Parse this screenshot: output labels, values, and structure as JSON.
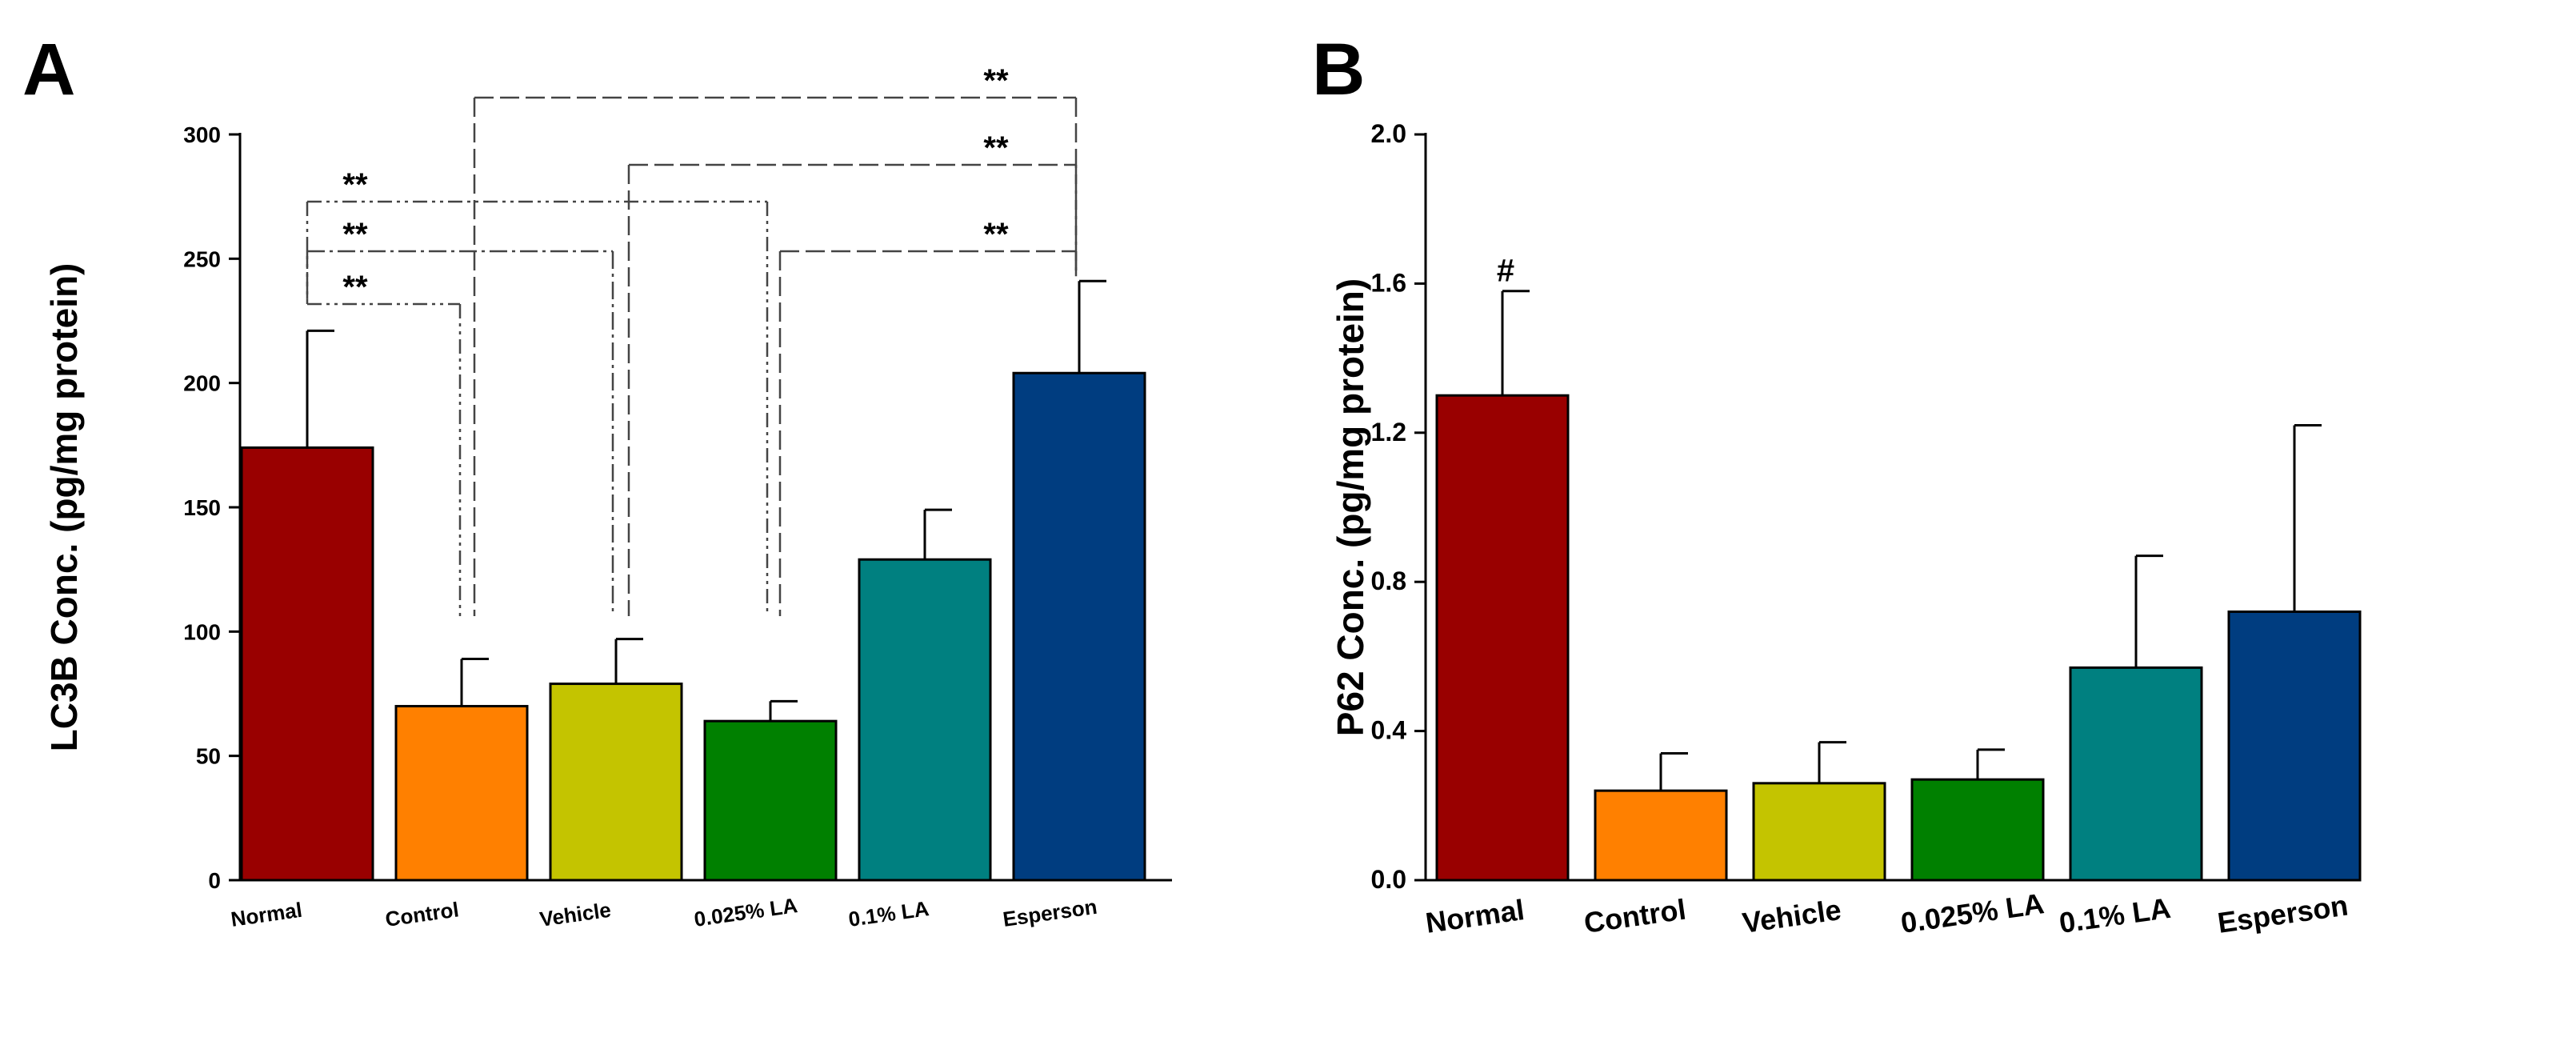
{
  "chart_data": [
    {
      "panel": "A",
      "type": "bar",
      "title": "",
      "xlabel": "",
      "ylabel": "LC3B Conc. (pg/mg protein)",
      "ylim": [
        0,
        300
      ],
      "yticks": [
        "0",
        "50",
        "100",
        "150",
        "200",
        "250",
        "300"
      ],
      "yticks_values": [
        0,
        50,
        100,
        150,
        200,
        250,
        300
      ],
      "categories": [
        "Normal",
        "Control",
        "Vehicle",
        "0.025% LA",
        "0.1% LA",
        "Esperson"
      ],
      "values": [
        174,
        70,
        79,
        64,
        129,
        204
      ],
      "errors": [
        47,
        19,
        18,
        8,
        20,
        37
      ],
      "colors": [
        "#990000",
        "#ff8000",
        "#c4c400",
        "#008000",
        "#008080",
        "#003d80"
      ],
      "significance": [
        {
          "from": 0,
          "to": 1,
          "label": "**",
          "style": "dash-dot-dot"
        },
        {
          "from": 0,
          "to": 2,
          "label": "**",
          "style": "dash-dot"
        },
        {
          "from": 0,
          "to": 3,
          "label": "**",
          "style": "dash-dot-dot"
        },
        {
          "from": 3,
          "to": 5,
          "label": "**",
          "style": "dashed"
        },
        {
          "from": 2,
          "to": 5,
          "label": "**",
          "style": "dashed"
        },
        {
          "from": 1,
          "to": 5,
          "label": "**",
          "style": "dashed"
        }
      ]
    },
    {
      "panel": "B",
      "type": "bar",
      "title": "",
      "xlabel": "",
      "ylabel": "P62 Conc. (pg/mg protein)",
      "ylim": [
        0,
        2.0
      ],
      "yticks": [
        "0.0",
        "0.4",
        "0.8",
        "1.2",
        "1.6",
        "2.0"
      ],
      "yticks_values": [
        0,
        0.4,
        0.8,
        1.2,
        1.6,
        2.0
      ],
      "categories": [
        "Normal",
        "Control",
        "Vehicle",
        "0.025% LA",
        "0.1% LA",
        "Esperson"
      ],
      "values": [
        1.3,
        0.24,
        0.26,
        0.27,
        0.57,
        0.72
      ],
      "errors": [
        0.28,
        0.1,
        0.11,
        0.08,
        0.3,
        0.5
      ],
      "colors": [
        "#990000",
        "#ff8000",
        "#c4c400",
        "#008000",
        "#008080",
        "#003d80"
      ],
      "annotations": [
        {
          "bar": 0,
          "label": "#"
        }
      ]
    }
  ]
}
